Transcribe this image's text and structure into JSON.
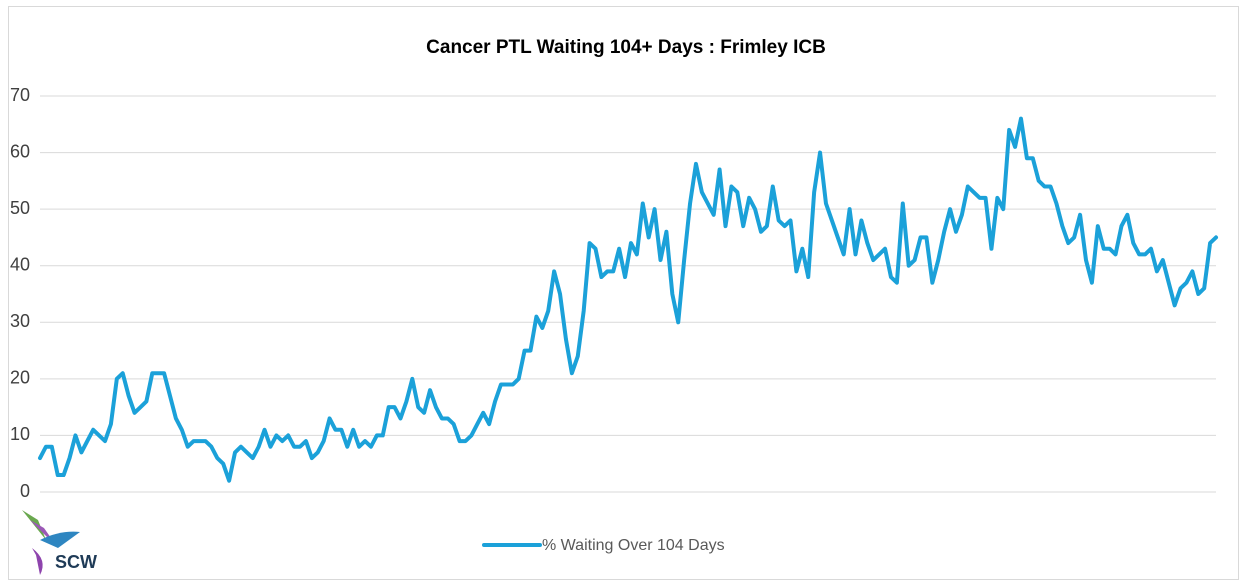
{
  "chart_data": {
    "type": "line",
    "title": "Cancer PTL Waiting 104+ Days : Frimley ICB",
    "logo": "SCW",
    "series": [
      {
        "name": "% Waiting Over 104 Days",
        "color": "#1ba1d9",
        "values": [
          6,
          8,
          8,
          3,
          3,
          6,
          10,
          7,
          9,
          11,
          10,
          9,
          12,
          20,
          21,
          17,
          14,
          15,
          16,
          21,
          21,
          21,
          17,
          13,
          11,
          8,
          9,
          9,
          9,
          8,
          6,
          5,
          2,
          7,
          8,
          7,
          6,
          8,
          11,
          8,
          10,
          9,
          10,
          8,
          8,
          9,
          6,
          7,
          9,
          13,
          11,
          11,
          8,
          11,
          8,
          9,
          8,
          10,
          10,
          15,
          15,
          13,
          16,
          20,
          15,
          14,
          18,
          15,
          13,
          13,
          12,
          9,
          9,
          10,
          12,
          14,
          12,
          16,
          19,
          19,
          19,
          20,
          25,
          25,
          31,
          29,
          32,
          39,
          35,
          27,
          21,
          24,
          32,
          44,
          43,
          38,
          39,
          39,
          43,
          38,
          44,
          42,
          51,
          45,
          50,
          41,
          46,
          35,
          30,
          41,
          51,
          58,
          53,
          51,
          49,
          57,
          47,
          54,
          53,
          47,
          52,
          50,
          46,
          47,
          54,
          48,
          47,
          48,
          39,
          43,
          38,
          53,
          60,
          51,
          48,
          45,
          42,
          50,
          42,
          48,
          44,
          41,
          42,
          43,
          38,
          37,
          51,
          40,
          41,
          45,
          45,
          37,
          41,
          46,
          50,
          46,
          49,
          54,
          53,
          52,
          52,
          43,
          52,
          50,
          64,
          61,
          66,
          59,
          59,
          55,
          54,
          54,
          51,
          47,
          44,
          45,
          49,
          41,
          37,
          47,
          43,
          43,
          42,
          47,
          49,
          44,
          42,
          42,
          43,
          39,
          41,
          37,
          33,
          36,
          37,
          39,
          35,
          36,
          44,
          45
        ]
      }
    ],
    "ylim": [
      0,
      70
    ],
    "yticks": [
      0,
      10,
      20,
      30,
      40,
      50,
      60,
      70
    ],
    "grid": true,
    "legend": "bottom"
  }
}
